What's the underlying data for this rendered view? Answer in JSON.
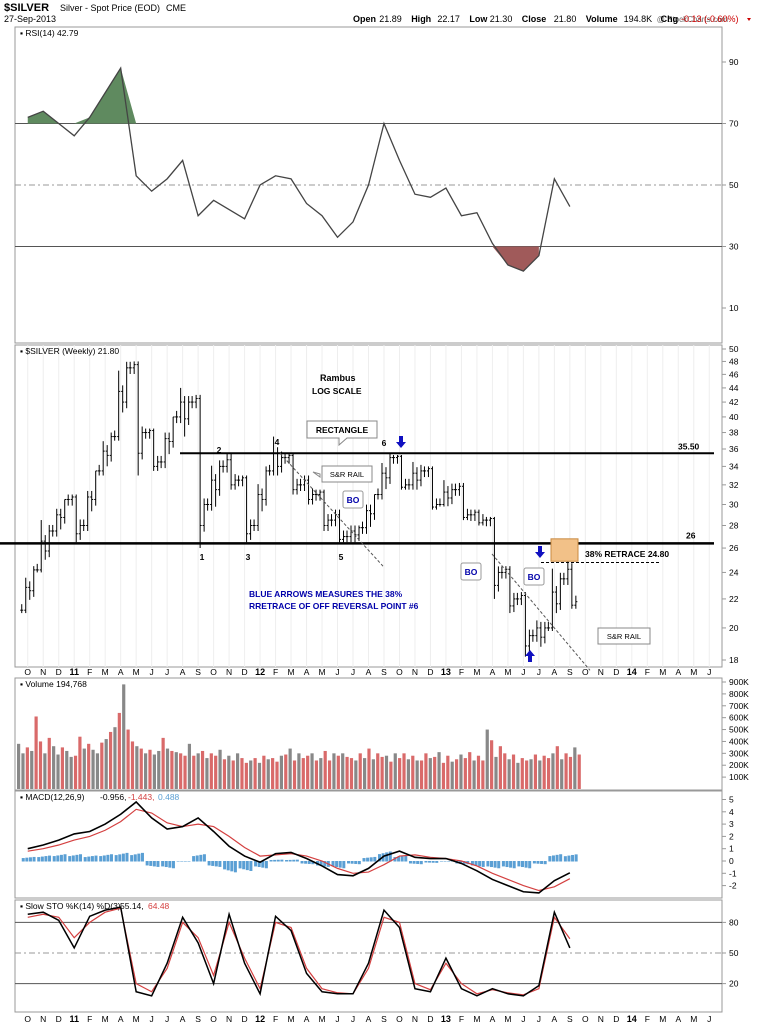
{
  "header": {
    "symbol": "$SILVER",
    "name": "Silver - Spot Price (EOD)",
    "exchange": "CME",
    "date": "27-Sep-2013",
    "watermark": "@ StockCharts.com",
    "quote": [
      {
        "label": "Open",
        "value": "21.89"
      },
      {
        "label": "High",
        "value": "22.17"
      },
      {
        "label": "Low",
        "value": "21.30"
      },
      {
        "label": "Close",
        "value": "21.80"
      },
      {
        "label": "Volume",
        "value": "194.8K"
      },
      {
        "label": "Chg",
        "value": "-0.13 (-0.60%)"
      }
    ],
    "chg_color": "#cc0000"
  },
  "colors": {
    "up_vol": "#888888",
    "down_vol": "#d96a6a",
    "macd_hist": "#5a9fd4",
    "rsi_high_fill": "#5f8a5f",
    "rsi_low_fill": "#a05a5a",
    "arrow": "#1010c0",
    "annotation_text": "#0000aa",
    "retrace_box": "#f2c188",
    "sig_line": "#d44040"
  },
  "chart_data": [
    {
      "type": "line",
      "title": "RSI(14) 42.79",
      "ylim": [
        0,
        100
      ],
      "yticks": [
        "90",
        "70",
        "50",
        "30",
        "10"
      ],
      "reference_lines": [
        70,
        50,
        30
      ],
      "x": [
        "2010-10",
        "2010-11",
        "2010-12",
        "2011-01",
        "2011-02",
        "2011-03",
        "2011-04",
        "2011-05",
        "2011-06",
        "2011-07",
        "2011-08",
        "2011-09",
        "2011-10",
        "2011-11",
        "2011-12",
        "2012-01",
        "2012-02",
        "2012-03",
        "2012-04",
        "2012-05",
        "2012-06",
        "2012-07",
        "2012-08",
        "2012-09",
        "2012-10",
        "2012-11",
        "2012-12",
        "2013-01",
        "2013-02",
        "2013-03",
        "2013-04",
        "2013-05",
        "2013-06",
        "2013-07",
        "2013-08",
        "2013-09"
      ],
      "values": [
        72,
        74,
        70,
        66,
        72,
        80,
        88,
        53,
        48,
        52,
        58,
        40,
        45,
        42,
        39,
        50,
        53,
        52,
        44,
        40,
        33,
        38,
        50,
        70,
        58,
        47,
        46,
        49,
        40,
        41,
        31,
        24,
        22,
        27,
        52,
        43
      ]
    },
    {
      "type": "bar",
      "title": "$SILVER (Weekly) 21.80",
      "scale": "log",
      "ylim": [
        17,
        51
      ],
      "yticks": [
        "50",
        "48",
        "46",
        "44",
        "42",
        "40",
        "38",
        "36",
        "34",
        "32",
        "30",
        "28",
        "26",
        "24",
        "22",
        "20",
        "18"
      ],
      "x_labels": [
        "O",
        "N",
        "D",
        "11",
        "F",
        "M",
        "A",
        "M",
        "J",
        "J",
        "A",
        "S",
        "O",
        "N",
        "D",
        "12",
        "F",
        "M",
        "A",
        "M",
        "J",
        "J",
        "A",
        "S",
        "O",
        "N",
        "D",
        "13",
        "F",
        "M",
        "A",
        "M",
        "J",
        "J",
        "A",
        "S",
        "O",
        "N",
        "D",
        "14",
        "F",
        "M",
        "A",
        "M",
        "J"
      ],
      "series_ohlc_monthly": [
        {
          "m": "2010-10",
          "o": 21.2,
          "h": 24.5,
          "l": 21.0,
          "c": 24.2
        },
        {
          "m": "2010-11",
          "o": 24.2,
          "h": 29.0,
          "l": 24.0,
          "c": 27.5
        },
        {
          "m": "2010-12",
          "o": 27.5,
          "h": 30.5,
          "l": 27.0,
          "c": 30.5
        },
        {
          "m": "2011-01",
          "o": 30.5,
          "h": 31.0,
          "l": 26.5,
          "c": 28.0
        },
        {
          "m": "2011-02",
          "o": 28.0,
          "h": 33.5,
          "l": 27.5,
          "c": 33.5
        },
        {
          "m": "2011-03",
          "o": 33.5,
          "h": 38.0,
          "l": 33.0,
          "c": 37.5
        },
        {
          "m": "2011-04",
          "o": 37.5,
          "h": 49.5,
          "l": 37.0,
          "c": 47.0
        },
        {
          "m": "2011-05",
          "o": 47.0,
          "h": 48.0,
          "l": 33.0,
          "c": 38.0
        },
        {
          "m": "2011-06",
          "o": 38.0,
          "h": 38.5,
          "l": 33.5,
          "c": 34.5
        },
        {
          "m": "2011-07",
          "o": 34.5,
          "h": 40.0,
          "l": 33.8,
          "c": 40.0
        },
        {
          "m": "2011-08",
          "o": 40.0,
          "h": 44.0,
          "l": 37.5,
          "c": 42.0
        },
        {
          "m": "2011-09",
          "o": 42.0,
          "h": 43.0,
          "l": 26.0,
          "c": 30.0
        },
        {
          "m": "2011-10",
          "o": 30.0,
          "h": 35.0,
          "l": 29.0,
          "c": 34.0
        },
        {
          "m": "2011-11",
          "o": 34.0,
          "h": 35.5,
          "l": 31.5,
          "c": 32.5
        },
        {
          "m": "2011-12",
          "o": 32.5,
          "h": 33.0,
          "l": 26.5,
          "c": 28.0
        },
        {
          "m": "2012-01",
          "o": 28.0,
          "h": 34.0,
          "l": 27.5,
          "c": 33.5
        },
        {
          "m": "2012-02",
          "o": 33.5,
          "h": 37.5,
          "l": 33.0,
          "c": 35.0
        },
        {
          "m": "2012-03",
          "o": 35.0,
          "h": 35.5,
          "l": 31.0,
          "c": 32.0
        },
        {
          "m": "2012-04",
          "o": 32.0,
          "h": 33.0,
          "l": 30.0,
          "c": 31.0
        },
        {
          "m": "2012-05",
          "o": 31.0,
          "h": 31.5,
          "l": 27.5,
          "c": 28.5
        },
        {
          "m": "2012-06",
          "o": 28.5,
          "h": 29.5,
          "l": 26.5,
          "c": 27.0
        },
        {
          "m": "2012-07",
          "o": 27.0,
          "h": 28.0,
          "l": 26.5,
          "c": 27.8
        },
        {
          "m": "2012-08",
          "o": 27.8,
          "h": 31.0,
          "l": 27.2,
          "c": 31.0
        },
        {
          "m": "2012-09",
          "o": 31.0,
          "h": 35.5,
          "l": 30.5,
          "c": 35.0
        },
        {
          "m": "2012-10",
          "o": 35.0,
          "h": 35.3,
          "l": 31.5,
          "c": 32.0
        },
        {
          "m": "2012-11",
          "o": 32.0,
          "h": 34.5,
          "l": 31.5,
          "c": 33.5
        },
        {
          "m": "2012-12",
          "o": 33.5,
          "h": 34.0,
          "l": 29.5,
          "c": 30.0
        },
        {
          "m": "2013-01",
          "o": 30.0,
          "h": 32.5,
          "l": 29.8,
          "c": 31.5
        },
        {
          "m": "2013-02",
          "o": 31.5,
          "h": 32.2,
          "l": 28.5,
          "c": 29.0
        },
        {
          "m": "2013-03",
          "o": 29.0,
          "h": 29.5,
          "l": 28.0,
          "c": 28.5
        },
        {
          "m": "2013-04",
          "o": 28.5,
          "h": 28.8,
          "l": 22.0,
          "c": 24.0
        },
        {
          "m": "2013-05",
          "o": 24.0,
          "h": 24.5,
          "l": 21.0,
          "c": 22.0
        },
        {
          "m": "2013-06",
          "o": 22.0,
          "h": 22.5,
          "l": 18.2,
          "c": 19.5
        },
        {
          "m": "2013-07",
          "o": 19.5,
          "h": 20.5,
          "l": 18.8,
          "c": 20.0
        },
        {
          "m": "2013-08",
          "o": 20.0,
          "h": 25.0,
          "l": 19.8,
          "c": 23.5
        },
        {
          "m": "2013-09",
          "o": 23.5,
          "h": 25.0,
          "l": 21.3,
          "c": 21.8
        }
      ],
      "horizontal_lines": [
        {
          "value": 35.5,
          "label": "35.50"
        },
        {
          "value": 26.4,
          "label": "26"
        }
      ],
      "annotations": {
        "rambus": "Rambus",
        "log_scale": "LOG SCALE",
        "rectangle": "RECTANGLE",
        "sr_rail_1": "S&R RAIL",
        "sr_rail_2": "S&R RAIL",
        "bo_1": "BO",
        "bo_2": "BO",
        "bo_3": "BO",
        "retrace": "38% RETRACE 24.80",
        "blue_note_line1": "BLUE ARROWS MEASURES THE 38%",
        "blue_note_line2": "RRETRACE OF OFF REVERSAL POINT #6",
        "points": [
          "1",
          "2",
          "3",
          "4",
          "5",
          "6"
        ]
      }
    },
    {
      "type": "bar",
      "title": "Volume 194,768",
      "ylim": [
        0,
        900000
      ],
      "yticks": [
        "900K",
        "800K",
        "700K",
        "600K",
        "500K",
        "400K",
        "300K",
        "200K",
        "100K"
      ],
      "values_k": [
        380,
        300,
        350,
        320,
        610,
        400,
        300,
        430,
        360,
        290,
        350,
        320,
        270,
        280,
        440,
        340,
        380,
        330,
        300,
        390,
        420,
        480,
        520,
        640,
        880,
        500,
        400,
        360,
        340,
        300,
        330,
        290,
        320,
        430,
        340,
        320,
        310,
        300,
        280,
        380,
        280,
        300,
        320,
        260,
        300,
        280,
        330,
        250,
        280,
        240,
        300,
        260,
        220,
        240,
        260,
        220,
        280,
        250,
        260,
        230,
        280,
        290,
        340,
        240,
        300,
        260,
        280,
        300,
        240,
        260,
        320,
        240,
        300,
        280,
        300,
        270,
        260,
        240,
        300,
        260,
        340,
        250,
        300,
        270,
        280,
        230,
        300,
        260,
        300,
        250,
        280,
        240,
        240,
        300,
        260,
        270,
        310,
        220,
        280,
        230,
        250,
        290,
        260,
        310,
        240,
        280,
        240,
        500,
        410,
        270,
        360,
        300,
        250,
        290,
        220,
        260,
        240,
        250,
        290,
        240,
        280,
        260,
        300,
        360,
        250,
        300,
        270,
        350,
        290
      ],
      "down_flags": [
        0,
        0,
        1,
        0,
        1,
        1,
        0,
        1,
        0,
        0,
        1,
        0,
        0,
        1,
        1,
        0,
        1,
        0,
        0,
        1,
        0,
        1,
        0,
        1,
        0,
        1,
        1,
        0,
        1,
        0,
        1,
        0,
        0,
        1,
        0,
        1,
        0,
        1,
        1,
        0,
        1,
        0,
        1,
        0,
        1,
        1,
        0,
        1,
        0,
        1,
        0,
        1,
        1,
        0,
        1,
        0,
        1,
        0,
        1,
        1,
        0,
        1,
        0,
        1,
        0,
        1,
        1,
        0,
        1,
        0,
        1,
        1,
        0,
        1,
        0,
        1,
        1,
        0,
        1,
        0,
        1,
        0,
        1,
        1,
        0,
        1,
        0,
        1,
        1,
        0,
        1,
        0,
        1,
        1,
        0,
        1,
        0,
        1,
        1,
        0,
        1,
        0,
        1,
        1,
        0,
        1,
        1,
        0,
        1,
        0,
        1,
        1,
        0,
        1,
        0,
        1,
        1,
        0,
        1,
        0,
        1,
        1,
        0,
        1,
        0,
        1,
        1,
        0,
        1
      ]
    },
    {
      "type": "line",
      "title": "MACD(12,26,9) -0.956, -1.443, 0.488",
      "title_parts": [
        "MACD(12,26,9)",
        "-0.956,",
        "-1.443,",
        "0.488"
      ],
      "ylim": [
        -3,
        5.5
      ],
      "yticks": [
        "5",
        "4",
        "3",
        "2",
        "1",
        "0",
        "-1",
        "-2"
      ],
      "series": [
        {
          "name": "MACD",
          "values": [
            1.0,
            1.3,
            1.7,
            2.2,
            2.4,
            3.0,
            3.8,
            4.8,
            3.5,
            2.6,
            2.8,
            3.5,
            2.4,
            1.2,
            0.4,
            -0.1,
            0.6,
            0.7,
            0.2,
            -0.4,
            -1.1,
            -1.2,
            -0.6,
            0.4,
            0.8,
            0.3,
            0.2,
            0.2,
            -0.2,
            -0.8,
            -1.5,
            -2.0,
            -2.5,
            -2.6,
            -1.6,
            -0.96
          ]
        },
        {
          "name": "Signal",
          "values": [
            0.8,
            1.0,
            1.3,
            1.7,
            2.0,
            2.5,
            3.2,
            4.2,
            3.9,
            3.1,
            2.8,
            3.0,
            2.8,
            2.0,
            1.1,
            0.4,
            0.5,
            0.6,
            0.4,
            0.0,
            -0.6,
            -1.0,
            -0.9,
            -0.3,
            0.4,
            0.5,
            0.3,
            0.2,
            0.0,
            -0.4,
            -1.0,
            -1.5,
            -2.0,
            -2.4,
            -2.1,
            -1.44
          ]
        },
        {
          "name": "Histogram",
          "values": [
            0.3,
            0.4,
            0.5,
            0.5,
            0.4,
            0.5,
            0.6,
            0.6,
            -0.4,
            -0.5,
            0.0,
            0.5,
            -0.4,
            -0.8,
            -0.7,
            -0.5,
            0.1,
            0.1,
            -0.2,
            -0.4,
            -0.5,
            -0.2,
            0.3,
            0.7,
            0.4,
            -0.2,
            -0.1,
            0.0,
            -0.2,
            -0.4,
            -0.5,
            -0.5,
            -0.5,
            -0.2,
            0.5,
            0.49
          ]
        }
      ]
    },
    {
      "type": "line",
      "title": "Slow STO %K(14) %D(3) 55.14, 64.48",
      "title_parts": [
        "Slow STO %K(14) %D(3)",
        "55.14,",
        "64.48"
      ],
      "ylim": [
        0,
        100
      ],
      "yticks": [
        "80",
        "50",
        "20"
      ],
      "reference_lines": [
        80,
        50,
        20
      ],
      "series": [
        {
          "name": "%K",
          "values": [
            88,
            90,
            82,
            55,
            86,
            92,
            95,
            12,
            8,
            40,
            85,
            60,
            20,
            88,
            40,
            10,
            86,
            72,
            30,
            12,
            10,
            10,
            40,
            92,
            75,
            15,
            12,
            45,
            15,
            8,
            15,
            10,
            8,
            18,
            90,
            55
          ]
        },
        {
          "name": "%D",
          "values": [
            85,
            88,
            85,
            65,
            80,
            90,
            94,
            20,
            12,
            35,
            80,
            65,
            28,
            80,
            45,
            15,
            80,
            75,
            35,
            15,
            11,
            10,
            35,
            85,
            80,
            20,
            14,
            40,
            20,
            10,
            14,
            11,
            9,
            15,
            85,
            64
          ]
        }
      ]
    }
  ]
}
